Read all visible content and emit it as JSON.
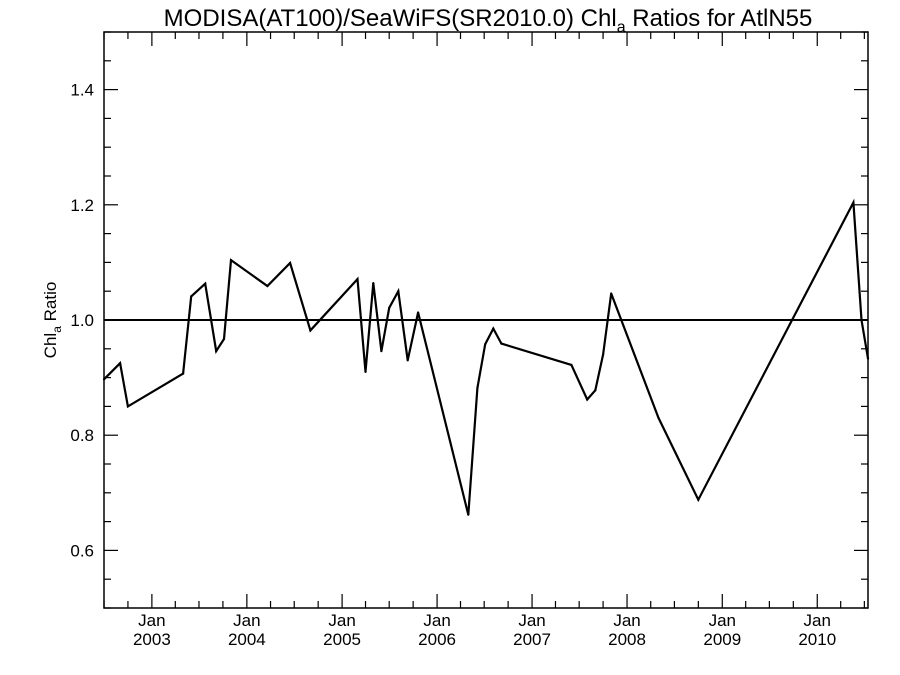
{
  "chart_data": {
    "type": "line",
    "title": {
      "prefix": "MODISA(AT100)/SeaWiFS(SR2010.0)  Chl",
      "subscript": "a",
      "suffix": " Ratios for AtlN55"
    },
    "ylabel": {
      "main": "Chl",
      "subscript": "a",
      "suffix": " Ratio"
    },
    "xlabel": "",
    "xlim": [
      "2002-07-01",
      "2010-07-15"
    ],
    "ylim": [
      0.5,
      1.5
    ],
    "y_ticks": [
      0.6,
      0.8,
      1.0,
      1.2,
      1.4
    ],
    "y_tick_labels": [
      "0.6",
      "0.8",
      "1.0",
      "1.2",
      "1.4"
    ],
    "x_ticks": [
      {
        "date": "2003-01-01",
        "month": "Jan",
        "year": "2003"
      },
      {
        "date": "2004-01-01",
        "month": "Jan",
        "year": "2004"
      },
      {
        "date": "2005-01-01",
        "month": "Jan",
        "year": "2005"
      },
      {
        "date": "2006-01-01",
        "month": "Jan",
        "year": "2006"
      },
      {
        "date": "2007-01-01",
        "month": "Jan",
        "year": "2007"
      },
      {
        "date": "2008-01-01",
        "month": "Jan",
        "year": "2008"
      },
      {
        "date": "2009-01-01",
        "month": "Jan",
        "year": "2009"
      },
      {
        "date": "2010-01-01",
        "month": "Jan",
        "year": "2010"
      }
    ],
    "reference_line": 1.0,
    "grid": false,
    "line_color": "#000000",
    "series": [
      {
        "points": [
          {
            "x": "2002-07-01",
            "y": 0.897
          },
          {
            "x": "2002-09-01",
            "y": 0.925
          },
          {
            "x": "2002-10-01",
            "y": 0.85
          },
          {
            "x": "2003-05-01",
            "y": 0.907
          },
          {
            "x": "2003-06-01",
            "y": 1.041
          },
          {
            "x": "2003-07-25",
            "y": 1.063
          },
          {
            "x": "2003-09-05",
            "y": 0.946
          },
          {
            "x": "2003-10-05",
            "y": 0.967
          },
          {
            "x": "2003-11-01",
            "y": 1.104
          },
          {
            "x": "2004-03-20",
            "y": 1.059
          },
          {
            "x": "2004-06-15",
            "y": 1.099
          },
          {
            "x": "2004-09-01",
            "y": 0.982
          },
          {
            "x": "2005-03-01",
            "y": 1.071
          },
          {
            "x": "2005-04-01",
            "y": 0.91
          },
          {
            "x": "2005-05-01",
            "y": 1.064
          },
          {
            "x": "2005-06-01",
            "y": 0.946
          },
          {
            "x": "2005-07-01",
            "y": 1.021
          },
          {
            "x": "2005-08-05",
            "y": 1.05
          },
          {
            "x": "2005-09-10",
            "y": 0.93
          },
          {
            "x": "2005-10-20",
            "y": 1.013
          },
          {
            "x": "2006-05-01",
            "y": 0.662
          },
          {
            "x": "2006-06-05",
            "y": 0.882
          },
          {
            "x": "2006-07-05",
            "y": 0.958
          },
          {
            "x": "2006-08-05",
            "y": 0.985
          },
          {
            "x": "2006-09-05",
            "y": 0.959
          },
          {
            "x": "2007-06-01",
            "y": 0.922
          },
          {
            "x": "2007-08-01",
            "y": 0.862
          },
          {
            "x": "2007-09-01",
            "y": 0.878
          },
          {
            "x": "2007-10-01",
            "y": 0.94
          },
          {
            "x": "2007-11-01",
            "y": 1.046
          },
          {
            "x": "2008-05-01",
            "y": 0.83
          },
          {
            "x": "2008-10-01",
            "y": 0.688
          },
          {
            "x": "2010-05-20",
            "y": 1.204
          },
          {
            "x": "2010-06-20",
            "y": 1.0
          },
          {
            "x": "2010-07-15",
            "y": 0.933
          }
        ]
      }
    ]
  }
}
